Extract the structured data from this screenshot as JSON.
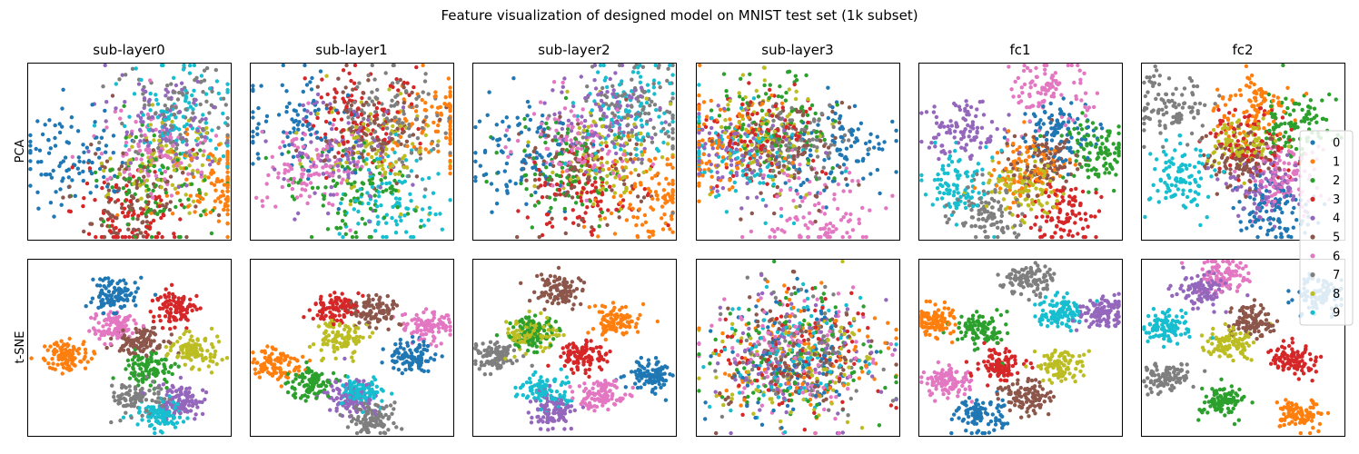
{
  "figure": {
    "title": "Feature visualization of designed model on MNIST test set (1k subset)"
  },
  "chart_data": {
    "type": "scatter",
    "title": "Feature visualization of designed model on MNIST test set (1k subset)",
    "columns": [
      "sub-layer0",
      "sub-layer1",
      "sub-layer2",
      "sub-layer3",
      "fc1",
      "fc2"
    ],
    "rows": [
      "PCA",
      "t-SNE"
    ],
    "legend": {
      "position": "right",
      "classes": [
        "0",
        "1",
        "2",
        "3",
        "4",
        "5",
        "6",
        "7",
        "8",
        "9"
      ]
    },
    "colors": [
      "#1f77b4",
      "#ff7f0e",
      "#2ca02c",
      "#d62728",
      "#9467bd",
      "#8c564b",
      "#e377c2",
      "#7f7f7f",
      "#bcbd22",
      "#17becf"
    ],
    "points_per_panel": 1000,
    "axes_ticks": false,
    "grid": false,
    "cluster_centers": {
      "PCA": {
        "sub-layer0": [
          [
            0.22,
            0.52
          ],
          [
            0.93,
            0.7
          ],
          [
            0.62,
            0.72
          ],
          [
            0.5,
            0.85
          ],
          [
            0.7,
            0.36
          ],
          [
            0.5,
            0.75
          ],
          [
            0.63,
            0.5
          ],
          [
            0.72,
            0.3
          ],
          [
            0.68,
            0.55
          ],
          [
            0.75,
            0.3
          ]
        ],
        "sub-layer1": [
          [
            0.25,
            0.35
          ],
          [
            0.9,
            0.35
          ],
          [
            0.5,
            0.7
          ],
          [
            0.55,
            0.3
          ],
          [
            0.45,
            0.5
          ],
          [
            0.6,
            0.35
          ],
          [
            0.3,
            0.6
          ],
          [
            0.72,
            0.3
          ],
          [
            0.6,
            0.45
          ],
          [
            0.7,
            0.8
          ]
        ],
        "sub-layer2": [
          [
            0.25,
            0.5
          ],
          [
            0.88,
            0.75
          ],
          [
            0.45,
            0.6
          ],
          [
            0.5,
            0.75
          ],
          [
            0.65,
            0.3
          ],
          [
            0.55,
            0.6
          ],
          [
            0.5,
            0.45
          ],
          [
            0.8,
            0.25
          ],
          [
            0.65,
            0.55
          ],
          [
            0.75,
            0.25
          ]
        ],
        "sub-layer3": [
          [
            0.7,
            0.5
          ],
          [
            0.1,
            0.45
          ],
          [
            0.4,
            0.35
          ],
          [
            0.3,
            0.4
          ],
          [
            0.2,
            0.5
          ],
          [
            0.45,
            0.5
          ],
          [
            0.6,
            0.85
          ],
          [
            0.5,
            0.45
          ],
          [
            0.35,
            0.4
          ],
          [
            0.2,
            0.5
          ]
        ],
        "fc1": [
          [
            0.7,
            0.4
          ],
          [
            0.55,
            0.6
          ],
          [
            0.88,
            0.5
          ],
          [
            0.7,
            0.85
          ],
          [
            0.2,
            0.4
          ],
          [
            0.6,
            0.55
          ],
          [
            0.65,
            0.15
          ],
          [
            0.35,
            0.85
          ],
          [
            0.5,
            0.7
          ],
          [
            0.2,
            0.7
          ]
        ],
        "fc2": [
          [
            0.65,
            0.85
          ],
          [
            0.55,
            0.25
          ],
          [
            0.75,
            0.35
          ],
          [
            0.55,
            0.45
          ],
          [
            0.6,
            0.7
          ],
          [
            0.5,
            0.55
          ],
          [
            0.7,
            0.65
          ],
          [
            0.15,
            0.25
          ],
          [
            0.5,
            0.45
          ],
          [
            0.2,
            0.65
          ]
        ]
      },
      "t-SNE": {
        "sub-layer0": [
          [
            0.42,
            0.2
          ],
          [
            0.2,
            0.55
          ],
          [
            0.6,
            0.62
          ],
          [
            0.73,
            0.28
          ],
          [
            0.75,
            0.8
          ],
          [
            0.55,
            0.48
          ],
          [
            0.42,
            0.38
          ],
          [
            0.55,
            0.78
          ],
          [
            0.82,
            0.52
          ],
          [
            0.65,
            0.88
          ]
        ],
        "sub-layer1": [
          [
            0.8,
            0.55
          ],
          [
            0.13,
            0.6
          ],
          [
            0.3,
            0.7
          ],
          [
            0.42,
            0.28
          ],
          [
            0.5,
            0.78
          ],
          [
            0.6,
            0.3
          ],
          [
            0.88,
            0.38
          ],
          [
            0.6,
            0.9
          ],
          [
            0.45,
            0.45
          ],
          [
            0.55,
            0.75
          ]
        ],
        "sub-layer2": [
          [
            0.88,
            0.65
          ],
          [
            0.7,
            0.35
          ],
          [
            0.3,
            0.42
          ],
          [
            0.55,
            0.55
          ],
          [
            0.4,
            0.85
          ],
          [
            0.42,
            0.18
          ],
          [
            0.63,
            0.78
          ],
          [
            0.1,
            0.55
          ],
          [
            0.3,
            0.42
          ],
          [
            0.35,
            0.75
          ]
        ],
        "sub-layer3": [
          [
            0.55,
            0.9
          ],
          [
            0.2,
            0.8
          ],
          [
            0.65,
            0.45
          ],
          [
            0.4,
            0.35
          ],
          [
            0.3,
            0.5
          ],
          [
            0.6,
            0.3
          ],
          [
            0.1,
            0.6
          ],
          [
            0.6,
            0.15
          ],
          [
            0.5,
            0.55
          ],
          [
            0.4,
            0.2
          ]
        ],
        "fc1": [
          [
            0.3,
            0.88
          ],
          [
            0.08,
            0.35
          ],
          [
            0.3,
            0.4
          ],
          [
            0.4,
            0.6
          ],
          [
            0.9,
            0.3
          ],
          [
            0.52,
            0.78
          ],
          [
            0.15,
            0.7
          ],
          [
            0.55,
            0.12
          ],
          [
            0.7,
            0.6
          ],
          [
            0.7,
            0.3
          ]
        ],
        "fc2": [
          [
            0.88,
            0.2
          ],
          [
            0.78,
            0.88
          ],
          [
            0.4,
            0.8
          ],
          [
            0.75,
            0.57
          ],
          [
            0.3,
            0.17
          ],
          [
            0.55,
            0.36
          ],
          [
            0.4,
            0.1
          ],
          [
            0.12,
            0.66
          ],
          [
            0.45,
            0.47
          ],
          [
            0.13,
            0.39
          ]
        ]
      }
    }
  }
}
